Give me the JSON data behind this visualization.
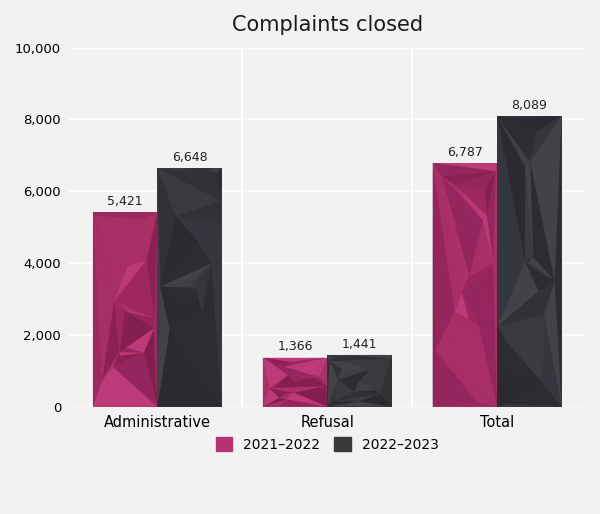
{
  "title": "Complaints closed",
  "categories": [
    "Administrative",
    "Refusal",
    "Total"
  ],
  "series": {
    "2021-2022": [
      5421,
      1366,
      6787
    ],
    "2022-2023": [
      6648,
      1441,
      8089
    ]
  },
  "bar_colors": {
    "2021-2022": "#b5336e",
    "2022-2023": "#3a3a3d"
  },
  "poly_colors_pink": [
    "#7a1a50",
    "#9c2a60",
    "#c04080",
    "#6b0f40",
    "#a03060",
    "#8b2055",
    "#5a0f35"
  ],
  "poly_colors_dark": [
    "#222228",
    "#3a3a42",
    "#4a4a52",
    "#2a2a32",
    "#1e1e26",
    "#333340",
    "#444450"
  ],
  "ylim": [
    0,
    10000
  ],
  "yticks": [
    0,
    2000,
    4000,
    6000,
    8000,
    10000
  ],
  "ytick_labels": [
    "0",
    "2,000",
    "4,000",
    "6,000",
    "8,000",
    "10,000"
  ],
  "background_color": "#f2f2f2",
  "bar_width": 0.38,
  "title_fontsize": 15,
  "legend_labels": [
    "2021–2022",
    "2022–2023"
  ],
  "value_labels": {
    "2021-2022": [
      "5,421",
      "1,366",
      "6,787"
    ],
    "2022-2023": [
      "6,648",
      "1,441",
      "8,089"
    ]
  }
}
